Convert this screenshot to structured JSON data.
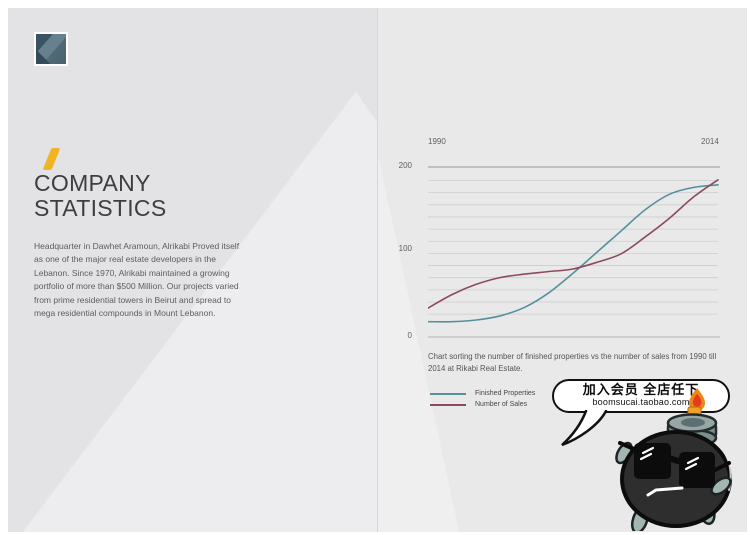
{
  "colors": {
    "accent_yellow": "#f0b525",
    "logo_dark": "#3a5362",
    "logo_light": "#67808d",
    "series_teal": "#55919b",
    "series_maroon": "#8c4a5f"
  },
  "left_page": {
    "title_line1": "COMPANY",
    "title_line2": "STATISTICS",
    "body": "Headquarter in Dawhet Aramoun, Alrikabi Proved itself as one of the major real estate developers in the Lebanon. Since 1970, Alrikabi maintained a growing portfolio of more than $500 Million. Our projects varied from prime residential towers in Beirut and spread to mega residential compounds in Mount Lebanon."
  },
  "chart_data": {
    "type": "line",
    "x_start_label": "1990",
    "x_end_label": "2014",
    "x": [
      1990,
      1992,
      1994,
      1996,
      1998,
      2000,
      2002,
      2004,
      2006,
      2008,
      2010,
      2012,
      2014
    ],
    "series": [
      {
        "name": "Finished Properties",
        "color": "#55919b",
        "values": [
          18,
          18,
          20,
          25,
          35,
          52,
          75,
          100,
          125,
          150,
          168,
          176,
          179
        ]
      },
      {
        "name": "Number of Sales",
        "color": "#8c4a5f",
        "values": [
          34,
          50,
          62,
          70,
          74,
          77,
          80,
          88,
          98,
          118,
          140,
          165,
          185
        ]
      }
    ],
    "ylim": [
      0,
      200
    ],
    "yticks_labels": [
      "200",
      "100",
      "0"
    ],
    "grid": "horizontal ruled lines",
    "legend_position": "bottom-left",
    "caption": "Chart sorting the number of finished properties vs the number of sales from 1990 till 2014 at Rikabi Real Estate."
  },
  "watermark_bubble": {
    "line1": "加入会员 全店任下",
    "line2": "boomsucai.taobao.com"
  }
}
